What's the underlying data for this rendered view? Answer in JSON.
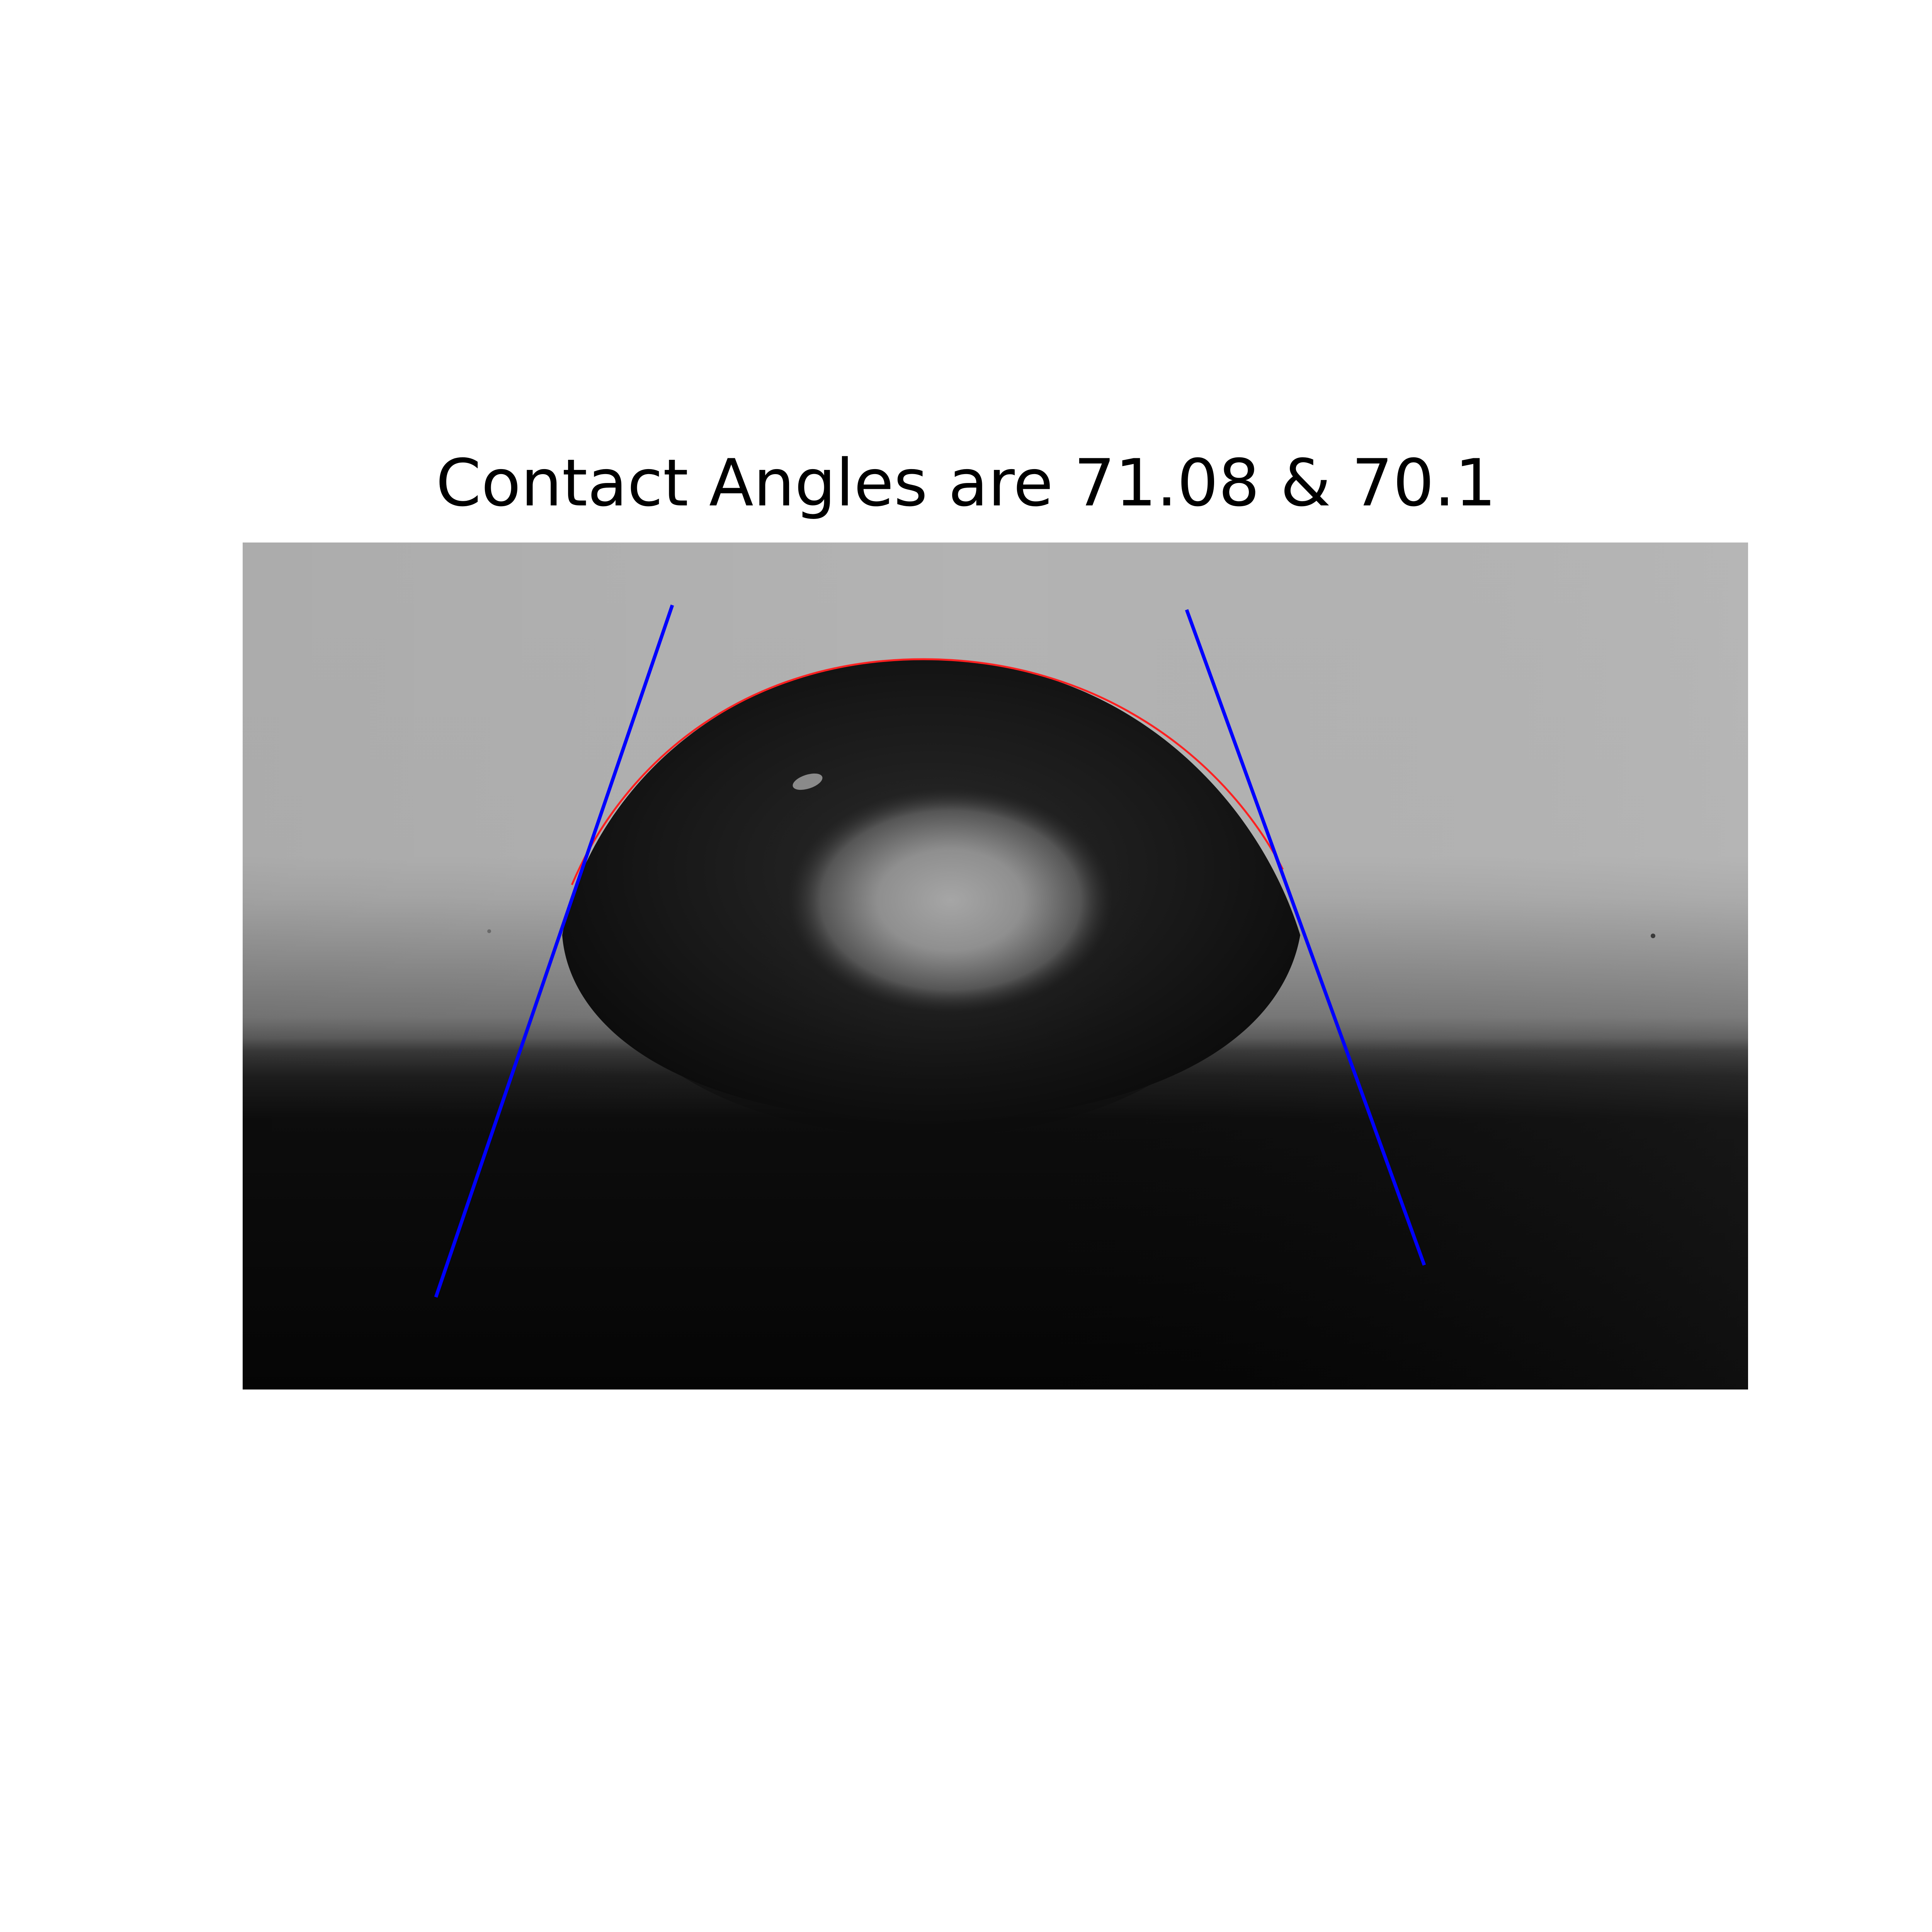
{
  "figure": {
    "title": "Contact Angles are 71.08 & 70.1"
  },
  "measurement": {
    "left_contact_angle_deg": 71.08,
    "right_contact_angle_deg": 70.1
  },
  "colors": {
    "tangent_lines": "#0000ff",
    "profile_fit": "#ff0000",
    "background": "#ffffff"
  }
}
